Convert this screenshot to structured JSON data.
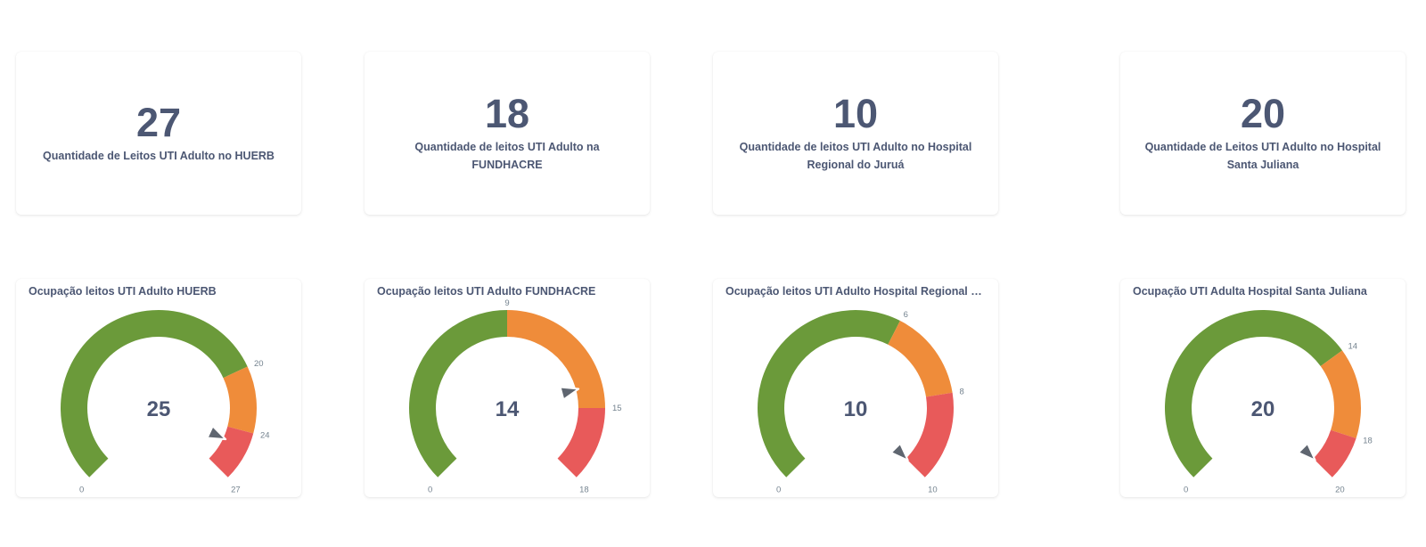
{
  "colors": {
    "green": "#6b9a3a",
    "orange": "#ef8c3a",
    "red": "#e85a5a",
    "pointer": "#5f6670",
    "text": "#4c5773",
    "tick": "#74838f"
  },
  "scalars": [
    {
      "value": "27",
      "label": "Quantidade de Leitos UTI Adulto no HUERB"
    },
    {
      "value": "18",
      "label": "Quantidade de leitos UTI Adulto na FUNDHACRE"
    },
    {
      "value": "10",
      "label": "Quantidade de leitos UTI Adulto no Hospital Regional do Juruá"
    },
    {
      "value": "20",
      "label": "Quantidade de Leitos UTI Adulto no Hospital Santa Juliana"
    }
  ],
  "gauges": [
    {
      "title": "Ocupação leitos UTI Adulto HUERB",
      "value": 25,
      "min": 0,
      "max": 27,
      "segments": [
        {
          "from": 0,
          "to": 20,
          "color": "green"
        },
        {
          "from": 20,
          "to": 24,
          "color": "orange"
        },
        {
          "from": 24,
          "to": 27,
          "color": "red"
        }
      ],
      "ticks": [
        "0",
        "20",
        "24",
        "27"
      ]
    },
    {
      "title": "Ocupação leitos UTI Adulto FUNDHACRE",
      "value": 14,
      "min": 0,
      "max": 18,
      "segments": [
        {
          "from": 0,
          "to": 9,
          "color": "green"
        },
        {
          "from": 9,
          "to": 15,
          "color": "orange"
        },
        {
          "from": 15,
          "to": 18,
          "color": "red"
        }
      ],
      "ticks": [
        "0",
        "9",
        "15",
        "18"
      ]
    },
    {
      "title": "Ocupação leitos UTI Adulto Hospital Regional do Jur...",
      "value": 10,
      "min": 0,
      "max": 10,
      "segments": [
        {
          "from": 0,
          "to": 6,
          "color": "green"
        },
        {
          "from": 6,
          "to": 8,
          "color": "orange"
        },
        {
          "from": 8,
          "to": 10,
          "color": "red"
        }
      ],
      "ticks": [
        "0",
        "6",
        "8",
        "10"
      ]
    },
    {
      "title": "Ocupação UTI Adulta Hospital Santa Juliana",
      "value": 20,
      "min": 0,
      "max": 20,
      "segments": [
        {
          "from": 0,
          "to": 14,
          "color": "green"
        },
        {
          "from": 14,
          "to": 18,
          "color": "orange"
        },
        {
          "from": 18,
          "to": 20,
          "color": "red"
        }
      ],
      "ticks": [
        "0",
        "14",
        "18",
        "20"
      ]
    }
  ]
}
